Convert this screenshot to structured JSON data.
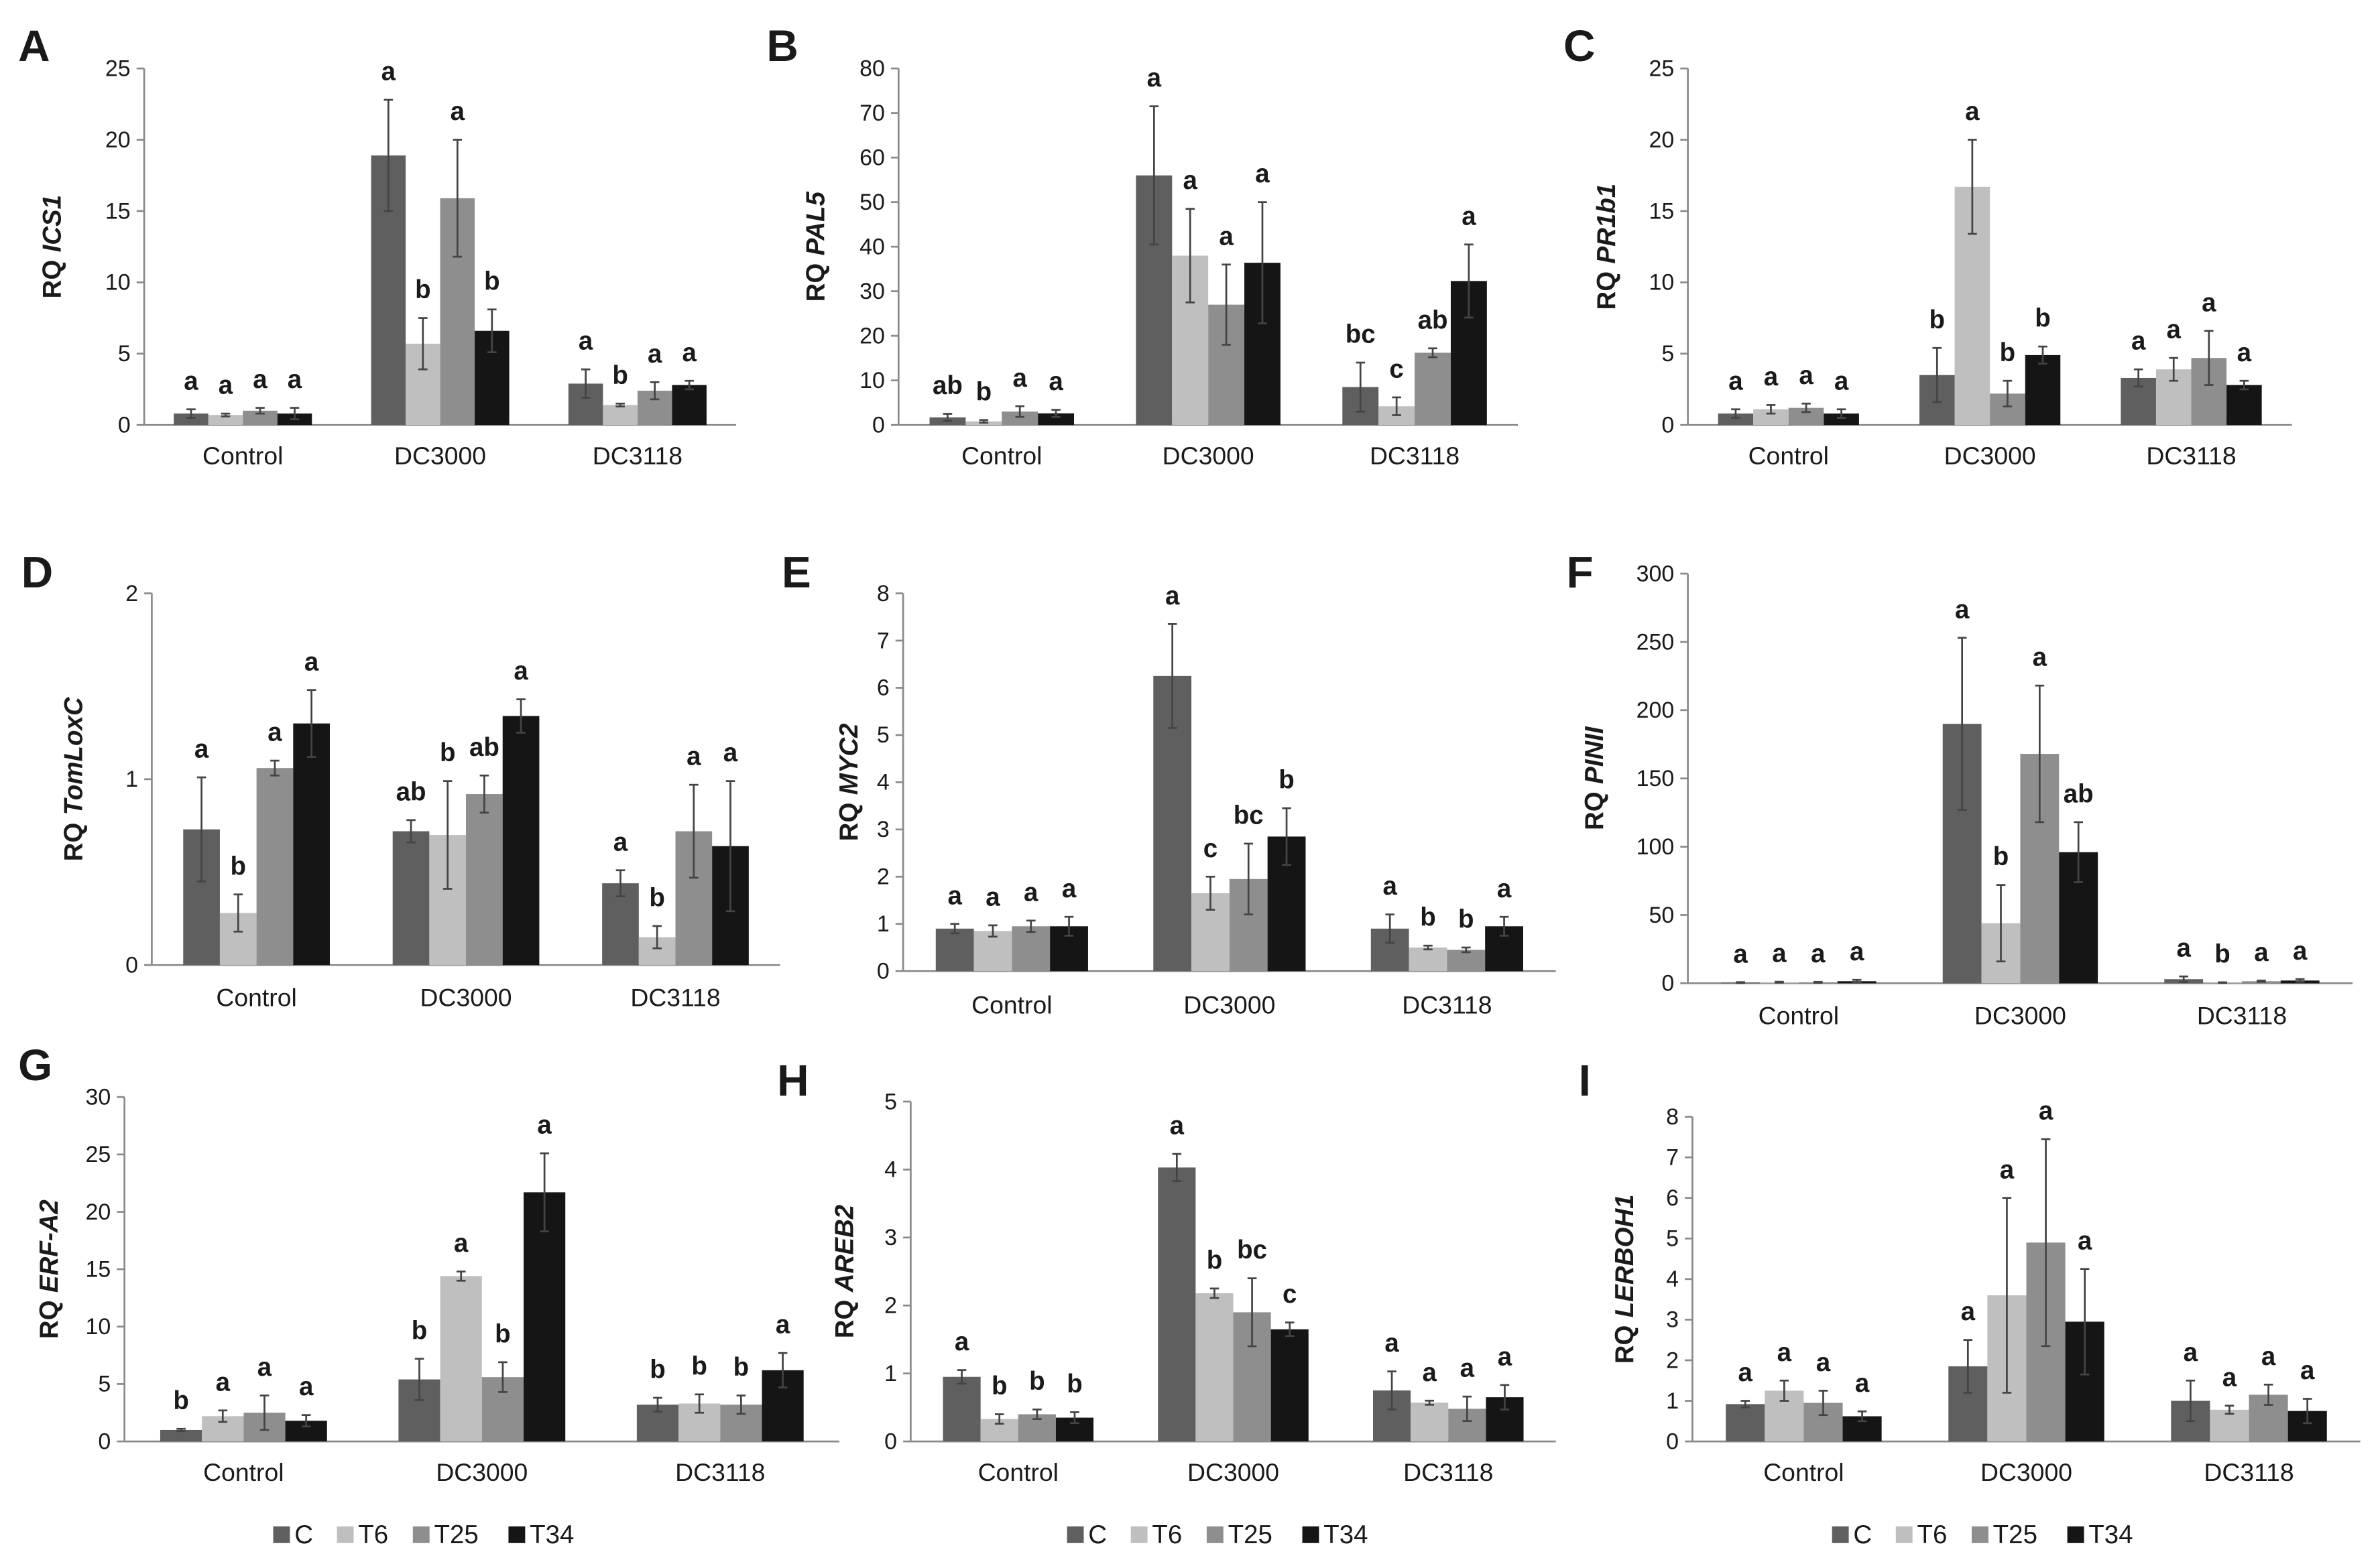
{
  "legend": {
    "labels": [
      "C",
      "T6",
      "T25",
      "T34"
    ],
    "colors": [
      "#5f5f5f",
      "#bfbfbf",
      "#8e8e8e",
      "#151515"
    ]
  },
  "chart_data": [
    {
      "panel": "A",
      "type": "bar",
      "ylabel_prefix": "RQ",
      "ylabel_gene": "ICS1",
      "categories": [
        "Control",
        "DC3000",
        "DC3118"
      ],
      "ylim": [
        0,
        25
      ],
      "yticks": [
        0,
        5,
        10,
        15,
        20,
        25
      ],
      "series": [
        {
          "values": [
            0.8,
            18.9,
            2.9
          ],
          "errors": [
            0.3,
            3.9,
            1.0
          ],
          "letters": [
            "a",
            "a",
            "a"
          ]
        },
        {
          "values": [
            0.7,
            5.7,
            1.4
          ],
          "errors": [
            0.1,
            1.8,
            0.1
          ],
          "letters": [
            "a",
            "b",
            "b"
          ]
        },
        {
          "values": [
            1.0,
            15.9,
            2.4
          ],
          "errors": [
            0.2,
            4.1,
            0.6
          ],
          "letters": [
            "a",
            "a",
            "a"
          ]
        },
        {
          "values": [
            0.8,
            6.6,
            2.8
          ],
          "errors": [
            0.4,
            1.5,
            0.3
          ],
          "letters": [
            "a",
            "b",
            "a"
          ]
        }
      ]
    },
    {
      "panel": "B",
      "type": "bar",
      "ylabel_prefix": "RQ",
      "ylabel_gene": "PAL5",
      "categories": [
        "Control",
        "DC3000",
        "DC3118"
      ],
      "ylim": [
        0,
        80
      ],
      "yticks": [
        0,
        10,
        20,
        30,
        40,
        50,
        60,
        70,
        80
      ],
      "series": [
        {
          "values": [
            1.7,
            56,
            8.5
          ],
          "errors": [
            0.8,
            15.5,
            5.5
          ],
          "letters": [
            "ab",
            "a",
            "bc"
          ]
        },
        {
          "values": [
            0.8,
            38,
            4.2
          ],
          "errors": [
            0.3,
            10.5,
            2.0
          ],
          "letters": [
            "b",
            "a",
            "c"
          ]
        },
        {
          "values": [
            3.0,
            27,
            16.2
          ],
          "errors": [
            1.2,
            9,
            1.0
          ],
          "letters": [
            "a",
            "a",
            "ab"
          ]
        },
        {
          "values": [
            2.6,
            36.4,
            32.3
          ],
          "errors": [
            0.8,
            13.6,
            8.2
          ],
          "letters": [
            "a",
            "a",
            "a"
          ]
        }
      ]
    },
    {
      "panel": "C",
      "type": "bar",
      "ylabel_prefix": "RQ",
      "ylabel_gene": "PR1b1",
      "categories": [
        "Control",
        "DC3000",
        "DC3118"
      ],
      "ylim": [
        0,
        25
      ],
      "yticks": [
        0,
        5,
        10,
        15,
        20,
        25
      ],
      "series": [
        {
          "values": [
            0.8,
            3.5,
            3.3
          ],
          "errors": [
            0.3,
            1.9,
            0.6
          ],
          "letters": [
            "a",
            "b",
            "a"
          ]
        },
        {
          "values": [
            1.1,
            16.7,
            3.9
          ],
          "errors": [
            0.3,
            3.3,
            0.8
          ],
          "letters": [
            "a",
            "a",
            "a"
          ]
        },
        {
          "values": [
            1.2,
            2.2,
            4.7
          ],
          "errors": [
            0.3,
            0.9,
            1.9
          ],
          "letters": [
            "a",
            "b",
            "a"
          ]
        },
        {
          "values": [
            0.8,
            4.9,
            2.8
          ],
          "errors": [
            0.3,
            0.6,
            0.3
          ],
          "letters": [
            "a",
            "b",
            "a"
          ]
        }
      ]
    },
    {
      "panel": "D",
      "type": "bar",
      "ylabel_prefix": "RQ",
      "ylabel_gene": "TomLoxC",
      "categories": [
        "Control",
        "DC3000",
        "DC3118"
      ],
      "ylim": [
        0,
        2
      ],
      "yticks": [
        0,
        1,
        2
      ],
      "series": [
        {
          "values": [
            0.73,
            0.72,
            0.44
          ],
          "errors": [
            0.28,
            0.06,
            0.07
          ],
          "letters": [
            "a",
            "ab",
            "a"
          ]
        },
        {
          "values": [
            0.28,
            0.7,
            0.15
          ],
          "errors": [
            0.1,
            0.29,
            0.06
          ],
          "letters": [
            "b",
            "b",
            "b"
          ]
        },
        {
          "values": [
            1.06,
            0.92,
            0.72
          ],
          "errors": [
            0.04,
            0.1,
            0.25
          ],
          "letters": [
            "a",
            "ab",
            "a"
          ]
        },
        {
          "values": [
            1.3,
            1.34,
            0.64
          ],
          "errors": [
            0.18,
            0.09,
            0.35
          ],
          "letters": [
            "a",
            "a",
            "a"
          ]
        }
      ]
    },
    {
      "panel": "E",
      "type": "bar",
      "ylabel_prefix": "RQ",
      "ylabel_gene": "MYC2",
      "categories": [
        "Control",
        "DC3000",
        "DC3118"
      ],
      "ylim": [
        0,
        8
      ],
      "yticks": [
        0,
        1,
        2,
        3,
        4,
        5,
        6,
        7,
        8
      ],
      "series": [
        {
          "values": [
            0.9,
            6.25,
            0.9
          ],
          "errors": [
            0.1,
            1.1,
            0.3
          ],
          "letters": [
            "a",
            "a",
            "a"
          ]
        },
        {
          "values": [
            0.85,
            1.65,
            0.5
          ],
          "errors": [
            0.12,
            0.35,
            0.04
          ],
          "letters": [
            "a",
            "c",
            "b"
          ]
        },
        {
          "values": [
            0.95,
            1.95,
            0.45
          ],
          "errors": [
            0.12,
            0.75,
            0.05
          ],
          "letters": [
            "a",
            "bc",
            "b"
          ]
        },
        {
          "values": [
            0.95,
            2.85,
            0.95
          ],
          "errors": [
            0.2,
            0.6,
            0.2
          ],
          "letters": [
            "a",
            "b",
            "a"
          ]
        }
      ]
    },
    {
      "panel": "F",
      "type": "bar",
      "ylabel_prefix": "RQ",
      "ylabel_gene": "PINII",
      "categories": [
        "Control",
        "DC3000",
        "DC3118"
      ],
      "ylim": [
        0,
        300
      ],
      "yticks": [
        0,
        50,
        100,
        150,
        200,
        250,
        300
      ],
      "series": [
        {
          "values": [
            0.5,
            190,
            3
          ],
          "errors": [
            0.3,
            63,
            2
          ],
          "letters": [
            "a",
            "a",
            "a"
          ]
        },
        {
          "values": [
            0.8,
            44,
            0.5
          ],
          "errors": [
            0.3,
            28,
            0.2
          ],
          "letters": [
            "a",
            "b",
            "b"
          ]
        },
        {
          "values": [
            0.7,
            168,
            1.5
          ],
          "errors": [
            0.3,
            50,
            0.5
          ],
          "letters": [
            "a",
            "a",
            "a"
          ]
        },
        {
          "values": [
            1.5,
            96,
            2
          ],
          "errors": [
            1,
            22,
            1
          ],
          "letters": [
            "a",
            "ab",
            "a"
          ]
        }
      ]
    },
    {
      "panel": "G",
      "type": "bar",
      "ylabel_prefix": "RQ",
      "ylabel_gene": "ERF-A2",
      "categories": [
        "Control",
        "DC3000",
        "DC3118"
      ],
      "ylim": [
        0,
        30
      ],
      "yticks": [
        0,
        5,
        10,
        15,
        20,
        25,
        30
      ],
      "series": [
        {
          "values": [
            1.0,
            5.4,
            3.2
          ],
          "errors": [
            0.1,
            1.8,
            0.6
          ],
          "letters": [
            "b",
            "b",
            "b"
          ]
        },
        {
          "values": [
            2.2,
            14.4,
            3.3
          ],
          "errors": [
            0.5,
            0.4,
            0.8
          ],
          "letters": [
            "a",
            "a",
            "b"
          ]
        },
        {
          "values": [
            2.5,
            5.6,
            3.2
          ],
          "errors": [
            1.5,
            1.3,
            0.8
          ],
          "letters": [
            "a",
            "b",
            "b"
          ]
        },
        {
          "values": [
            1.8,
            21.7,
            6.2
          ],
          "errors": [
            0.5,
            3.4,
            1.5
          ],
          "letters": [
            "a",
            "a",
            "a"
          ]
        }
      ]
    },
    {
      "panel": "H",
      "type": "bar",
      "ylabel_prefix": "RQ",
      "ylabel_gene": "AREB2",
      "categories": [
        "Control",
        "DC3000",
        "DC3118"
      ],
      "ylim": [
        0,
        5
      ],
      "yticks": [
        0,
        1,
        2,
        3,
        4,
        5
      ],
      "series": [
        {
          "values": [
            0.95,
            4.03,
            0.75
          ],
          "errors": [
            0.1,
            0.2,
            0.28
          ],
          "letters": [
            "a",
            "a",
            "a"
          ]
        },
        {
          "values": [
            0.33,
            2.18,
            0.57
          ],
          "errors": [
            0.07,
            0.07,
            0.03
          ],
          "letters": [
            "b",
            "b",
            "a"
          ]
        },
        {
          "values": [
            0.4,
            1.9,
            0.48
          ],
          "errors": [
            0.07,
            0.5,
            0.18
          ],
          "letters": [
            "b",
            "bc",
            "a"
          ]
        },
        {
          "values": [
            0.35,
            1.65,
            0.65
          ],
          "errors": [
            0.08,
            0.1,
            0.18
          ],
          "letters": [
            "b",
            "c",
            "a"
          ]
        }
      ]
    },
    {
      "panel": "I",
      "type": "bar",
      "ylabel_prefix": "RQ",
      "ylabel_gene": "LERBOH1",
      "categories": [
        "Control",
        "DC3000",
        "DC3118"
      ],
      "ylim": [
        0,
        8
      ],
      "yticks": [
        0,
        1,
        2,
        3,
        4,
        5,
        6,
        7,
        8
      ],
      "series": [
        {
          "values": [
            0.92,
            1.85,
            1.0
          ],
          "errors": [
            0.08,
            0.65,
            0.5
          ],
          "letters": [
            "a",
            "a",
            "a"
          ]
        },
        {
          "values": [
            1.25,
            3.6,
            0.78
          ],
          "errors": [
            0.25,
            2.4,
            0.1
          ],
          "letters": [
            "a",
            "a",
            "a"
          ]
        },
        {
          "values": [
            0.95,
            4.9,
            1.15
          ],
          "errors": [
            0.3,
            2.55,
            0.25
          ],
          "letters": [
            "a",
            "a",
            "a"
          ]
        },
        {
          "values": [
            0.62,
            2.95,
            0.75
          ],
          "errors": [
            0.12,
            1.3,
            0.3
          ],
          "letters": [
            "a",
            "a",
            "a"
          ]
        }
      ]
    }
  ]
}
